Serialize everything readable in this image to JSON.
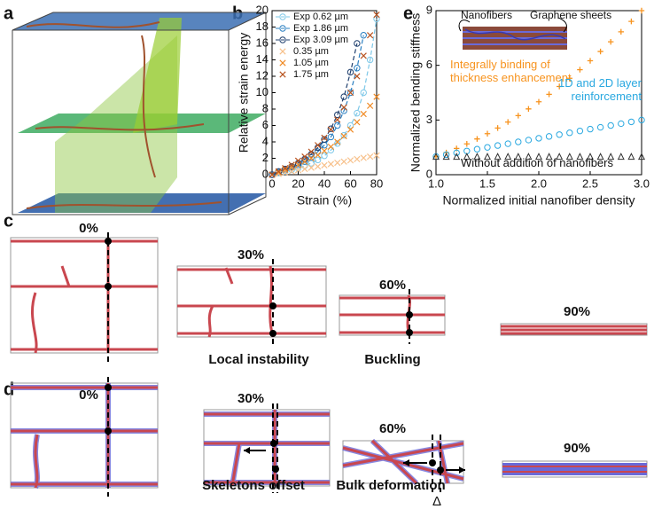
{
  "panel_labels": [
    "a",
    "b",
    "c",
    "d",
    "e"
  ],
  "chart_data": [
    {
      "type": "line",
      "xlabel": "Strain (%)",
      "ylabel": "Relative strain energy",
      "x": [
        0,
        5,
        10,
        15,
        20,
        25,
        30,
        35,
        40,
        45,
        50,
        55,
        60,
        65,
        70,
        75,
        80
      ],
      "xlim": [
        0,
        80
      ],
      "xticks": [
        0,
        20,
        40,
        60,
        80
      ],
      "ylim": [
        0,
        20
      ],
      "yticks": [
        0,
        2,
        4,
        6,
        8,
        10,
        12,
        14,
        16,
        18,
        20
      ],
      "legend": "upper left",
      "series": [
        {
          "name": "Exp 0.62 µm",
          "color": "#7ec8e8",
          "marker": "circle",
          "linestyle": "dashed",
          "values": [
            0,
            0.2,
            0.4,
            0.6,
            0.8,
            1.1,
            1.4,
            1.8,
            2.3,
            3,
            3.8,
            4.8,
            6,
            7.5,
            10,
            14,
            19
          ]
        },
        {
          "name": "Exp 1.86 µm",
          "color": "#2a7fc1",
          "marker": "circle",
          "linestyle": "dashed",
          "values": [
            0,
            0.3,
            0.6,
            0.9,
            1.2,
            1.6,
            2.1,
            2.8,
            3.6,
            4.6,
            6,
            7.8,
            10,
            13,
            17,
            null,
            null
          ]
        },
        {
          "name": "Exp 3.09 µm",
          "color": "#1f3f6e",
          "marker": "circle",
          "linestyle": "dashed",
          "values": [
            0,
            0.4,
            0.7,
            1,
            1.4,
            1.9,
            2.5,
            3.3,
            4.3,
            5.6,
            7.3,
            9.5,
            12.5,
            16,
            null,
            null,
            null
          ]
        },
        {
          "name": "0.35 µm",
          "color": "#f7c08a",
          "marker": "x",
          "linestyle": "none",
          "values": [
            0,
            0.1,
            0.25,
            0.4,
            0.55,
            0.7,
            0.85,
            1,
            1.15,
            1.3,
            1.45,
            1.6,
            1.75,
            1.9,
            2.05,
            2.2,
            2.35
          ]
        },
        {
          "name": "1.05 µm",
          "color": "#f08a24",
          "marker": "x",
          "linestyle": "none",
          "values": [
            0,
            0.3,
            0.6,
            0.9,
            1.2,
            1.6,
            2,
            2.4,
            2.9,
            3.4,
            4,
            4.7,
            5.5,
            6.4,
            7.4,
            8.4,
            9.5
          ]
        },
        {
          "name": "1.75 µm",
          "color": "#b8531f",
          "marker": "x",
          "linestyle": "none",
          "values": [
            0,
            0.4,
            0.8,
            1.2,
            1.7,
            2.2,
            2.8,
            3.6,
            4.5,
            5.5,
            6.7,
            8.2,
            10,
            12,
            14.5,
            17,
            19.5
          ]
        }
      ]
    },
    {
      "type": "scatter",
      "xlabel": "Normalized initial nanofiber density",
      "ylabel": "Normalized bending stiffness",
      "annotations": [
        "Nanofibers",
        "Graphene sheets"
      ],
      "x": [
        1,
        1.1,
        1.2,
        1.3,
        1.4,
        1.5,
        1.6,
        1.7,
        1.8,
        1.9,
        2,
        2.1,
        2.2,
        2.3,
        2.4,
        2.5,
        2.6,
        2.7,
        2.8,
        2.9,
        3
      ],
      "xlim": [
        1,
        3
      ],
      "xticks": [
        {
          "value": 1,
          "label": "1.0"
        },
        1.5,
        {
          "value": 2,
          "label": "2.0"
        },
        2.5,
        {
          "value": 3,
          "label": "3.0"
        }
      ],
      "ylim": [
        0,
        9
      ],
      "yticks": [
        0,
        3,
        6,
        9
      ],
      "series": [
        {
          "name": "Integrally binding of thickness enhancement",
          "color": "#f7931e",
          "marker": "plus",
          "linestyle": "none",
          "values": [
            1,
            1.21,
            1.44,
            1.69,
            1.96,
            2.25,
            2.56,
            2.89,
            3.24,
            3.61,
            4,
            4.41,
            4.84,
            5.29,
            5.76,
            6.25,
            6.76,
            7.29,
            7.84,
            8.41,
            9
          ]
        },
        {
          "name": "1D and 2D layer reinforcement",
          "color": "#29a8e0",
          "marker": "circle",
          "linestyle": "none",
          "values": [
            1,
            1.1,
            1.2,
            1.3,
            1.4,
            1.5,
            1.6,
            1.7,
            1.8,
            1.9,
            2,
            2.1,
            2.2,
            2.3,
            2.4,
            2.5,
            2.6,
            2.7,
            2.8,
            2.9,
            3
          ]
        },
        {
          "name": "Without addition of nanofibers",
          "color": "#333333",
          "marker": "triangle",
          "linestyle": "none",
          "values": [
            1,
            1,
            1,
            1,
            1,
            1,
            1,
            1,
            1,
            1,
            1,
            1,
            1,
            1,
            1,
            1,
            1,
            1,
            1,
            1,
            1
          ]
        }
      ]
    }
  ],
  "panel_c": {
    "strains": [
      "0%",
      "30%",
      "60%",
      "90%"
    ],
    "captions": [
      "Local instability",
      "Buckling"
    ]
  },
  "panel_d": {
    "strains": [
      "0%",
      "30%",
      "60%",
      "90%"
    ],
    "captions": [
      "Skeletons offset",
      "Bulk deformation"
    ],
    "delta": "Δ"
  }
}
